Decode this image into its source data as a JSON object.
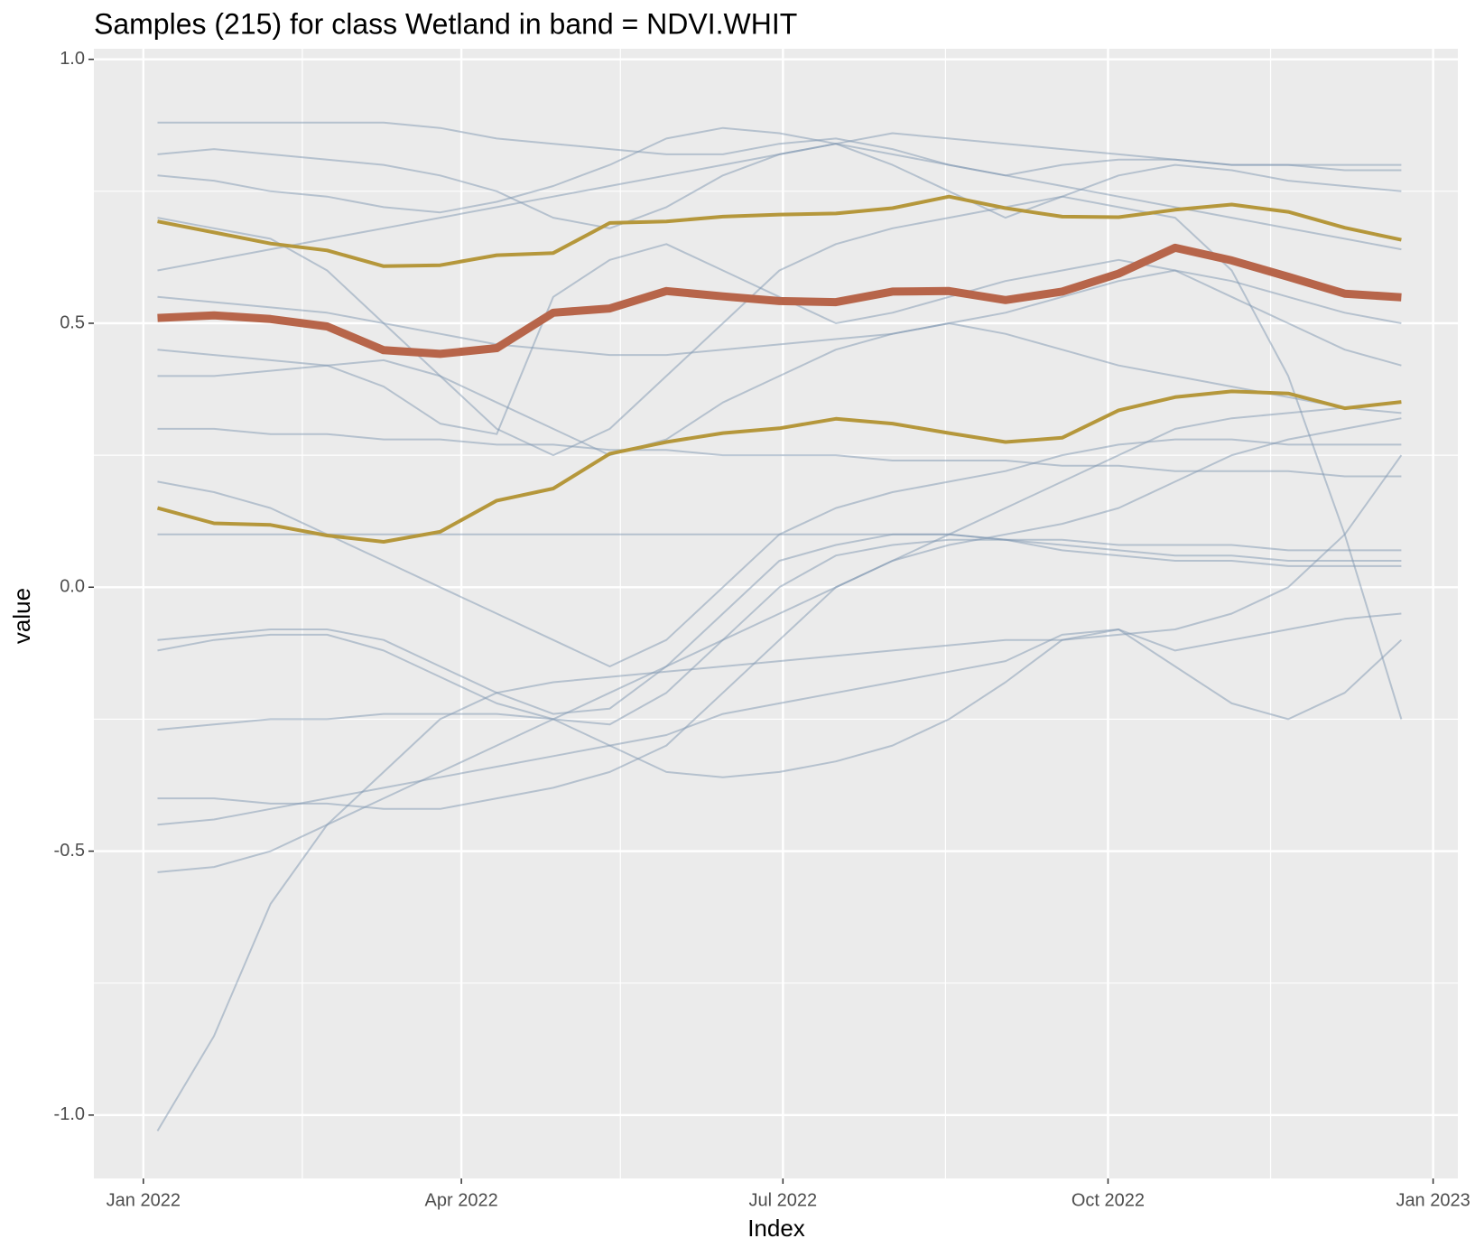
{
  "chart_data": {
    "type": "line",
    "title": "Samples (215) for class Wetland in band = NDVI.WHIT",
    "x_label": "Index",
    "y_label": "value",
    "x": [
      "2022-01-05",
      "2022-01-21",
      "2022-02-06",
      "2022-02-22",
      "2022-03-10",
      "2022-03-26",
      "2022-04-11",
      "2022-04-27",
      "2022-05-13",
      "2022-05-29",
      "2022-06-14",
      "2022-06-30",
      "2022-07-16",
      "2022-08-01",
      "2022-08-17",
      "2022-09-02",
      "2022-09-18",
      "2022-10-04",
      "2022-10-20",
      "2022-11-05",
      "2022-11-21",
      "2022-12-07",
      "2022-12-23"
    ],
    "xlim": [
      "2021-12-18",
      "2023-01-08"
    ],
    "xticks": [
      {
        "value": "2022-01-01",
        "label": "Jan 2022"
      },
      {
        "value": "2022-04-01",
        "label": "Apr 2022"
      },
      {
        "value": "2022-07-01",
        "label": "Jul 2022"
      },
      {
        "value": "2022-10-01",
        "label": "Oct 2022"
      },
      {
        "value": "2023-01-01",
        "label": "Jan 2023"
      }
    ],
    "xminorticks": [
      "2022-02-15",
      "2022-05-16",
      "2022-08-16",
      "2022-11-16"
    ],
    "ylim": [
      -1.12,
      1.02
    ],
    "yticks": [
      {
        "value": 1,
        "label": "1.0"
      },
      0.5,
      {
        "value": 0,
        "label": "0.0"
      },
      -0.5,
      {
        "value": -1,
        "label": "-1.0"
      }
    ],
    "yminorticks": [
      0.75,
      0.25,
      -0.25,
      -0.75
    ],
    "grid": true,
    "series": [
      {
        "color": "#7f98b1",
        "opacity": 0.5,
        "width": 2,
        "values": [
          0.88,
          0.88,
          0.88,
          0.88,
          0.88,
          0.87,
          0.85,
          0.84,
          0.83,
          0.82,
          0.82,
          0.84,
          0.85,
          0.83,
          0.8,
          0.78,
          0.8,
          0.81,
          0.81,
          0.8,
          0.8,
          0.79,
          0.79
        ]
      },
      {
        "color": "#7f98b1",
        "opacity": 0.5,
        "width": 2,
        "values": [
          -1.03,
          -0.85,
          -0.6,
          -0.45,
          -0.35,
          -0.25,
          -0.2,
          -0.18,
          -0.17,
          -0.16,
          -0.15,
          -0.14,
          -0.13,
          -0.12,
          -0.11,
          -0.1,
          -0.1,
          -0.09,
          -0.08,
          -0.05,
          0.0,
          0.1,
          0.25
        ]
      },
      {
        "color": "#7f98b1",
        "opacity": 0.5,
        "width": 2,
        "values": [
          -0.1,
          -0.09,
          -0.08,
          -0.08,
          -0.1,
          -0.15,
          -0.2,
          -0.24,
          -0.23,
          -0.15,
          -0.05,
          0.05,
          0.08,
          0.1,
          0.1,
          0.09,
          0.08,
          0.07,
          0.06,
          0.06,
          0.05,
          0.05,
          0.05
        ]
      },
      {
        "color": "#7f98b1",
        "opacity": 0.5,
        "width": 2,
        "values": [
          -0.12,
          -0.1,
          -0.09,
          -0.09,
          -0.12,
          -0.17,
          -0.22,
          -0.25,
          -0.26,
          -0.2,
          -0.1,
          0.0,
          0.06,
          0.08,
          0.09,
          0.09,
          0.07,
          0.06,
          0.05,
          0.05,
          0.04,
          0.04,
          0.04
        ]
      },
      {
        "color": "#7f98b1",
        "opacity": 0.5,
        "width": 2,
        "values": [
          0.78,
          0.77,
          0.75,
          0.74,
          0.72,
          0.71,
          0.73,
          0.76,
          0.8,
          0.85,
          0.87,
          0.86,
          0.84,
          0.8,
          0.75,
          0.7,
          0.74,
          0.78,
          0.8,
          0.79,
          0.77,
          0.76,
          0.75
        ]
      },
      {
        "color": "#7f98b1",
        "opacity": 0.5,
        "width": 2,
        "values": [
          0.45,
          0.44,
          0.43,
          0.42,
          0.38,
          0.31,
          0.29,
          0.55,
          0.62,
          0.65,
          0.6,
          0.55,
          0.5,
          0.52,
          0.55,
          0.58,
          0.6,
          0.62,
          0.6,
          0.55,
          0.5,
          0.45,
          0.42
        ]
      },
      {
        "color": "#7f98b1",
        "opacity": 0.5,
        "width": 2,
        "values": [
          0.3,
          0.3,
          0.29,
          0.29,
          0.28,
          0.28,
          0.27,
          0.27,
          0.26,
          0.26,
          0.25,
          0.25,
          0.25,
          0.24,
          0.24,
          0.24,
          0.23,
          0.23,
          0.22,
          0.22,
          0.22,
          0.21,
          0.21
        ]
      },
      {
        "color": "#7f98b1",
        "opacity": 0.5,
        "width": 2,
        "values": [
          -0.54,
          -0.53,
          -0.5,
          -0.45,
          -0.4,
          -0.35,
          -0.3,
          -0.25,
          -0.2,
          -0.15,
          -0.1,
          -0.05,
          0.0,
          0.05,
          0.1,
          0.15,
          0.2,
          0.25,
          0.3,
          0.32,
          0.33,
          0.34,
          0.35
        ]
      },
      {
        "color": "#7f98b1",
        "opacity": 0.5,
        "width": 2,
        "values": [
          -0.4,
          -0.4,
          -0.41,
          -0.41,
          -0.42,
          -0.42,
          -0.4,
          -0.38,
          -0.35,
          -0.3,
          -0.2,
          -0.1,
          0.0,
          0.05,
          0.08,
          0.1,
          0.12,
          0.15,
          0.2,
          0.25,
          0.28,
          0.3,
          0.32
        ]
      },
      {
        "color": "#7f98b1",
        "opacity": 0.5,
        "width": 2,
        "values": [
          0.1,
          0.1,
          0.1,
          0.1,
          0.1,
          0.1,
          0.1,
          0.1,
          0.1,
          0.1,
          0.1,
          0.1,
          0.1,
          0.1,
          0.1,
          0.09,
          0.09,
          0.08,
          0.08,
          0.08,
          0.07,
          0.07,
          0.07
        ]
      },
      {
        "color": "#7f98b1",
        "opacity": 0.5,
        "width": 2,
        "values": [
          0.7,
          0.68,
          0.66,
          0.6,
          0.5,
          0.4,
          0.3,
          0.25,
          0.3,
          0.4,
          0.5,
          0.6,
          0.65,
          0.68,
          0.7,
          0.72,
          0.74,
          0.72,
          0.7,
          0.6,
          0.4,
          0.1,
          -0.25
        ]
      },
      {
        "color": "#7f98b1",
        "opacity": 0.5,
        "width": 2,
        "values": [
          -0.27,
          -0.26,
          -0.25,
          -0.25,
          -0.24,
          -0.24,
          -0.24,
          -0.25,
          -0.3,
          -0.35,
          -0.36,
          -0.35,
          -0.33,
          -0.3,
          -0.25,
          -0.18,
          -0.1,
          -0.08,
          -0.15,
          -0.22,
          -0.25,
          -0.2,
          -0.1
        ]
      },
      {
        "color": "#7f98b1",
        "opacity": 0.5,
        "width": 2,
        "values": [
          0.6,
          0.62,
          0.64,
          0.66,
          0.68,
          0.7,
          0.72,
          0.74,
          0.76,
          0.78,
          0.8,
          0.82,
          0.84,
          0.82,
          0.8,
          0.78,
          0.76,
          0.74,
          0.72,
          0.7,
          0.68,
          0.66,
          0.64
        ]
      },
      {
        "color": "#7f98b1",
        "opacity": 0.5,
        "width": 2,
        "values": [
          0.2,
          0.18,
          0.15,
          0.1,
          0.05,
          0.0,
          -0.05,
          -0.1,
          -0.15,
          -0.1,
          0.0,
          0.1,
          0.15,
          0.18,
          0.2,
          0.22,
          0.25,
          0.27,
          0.28,
          0.28,
          0.27,
          0.27,
          0.27
        ]
      },
      {
        "color": "#7f98b1",
        "opacity": 0.5,
        "width": 2,
        "values": [
          0.55,
          0.54,
          0.53,
          0.52,
          0.5,
          0.48,
          0.46,
          0.45,
          0.44,
          0.44,
          0.45,
          0.46,
          0.47,
          0.48,
          0.5,
          0.52,
          0.55,
          0.58,
          0.6,
          0.58,
          0.55,
          0.52,
          0.5
        ]
      },
      {
        "color": "#7f98b1",
        "opacity": 0.5,
        "width": 2,
        "values": [
          0.4,
          0.4,
          0.41,
          0.42,
          0.43,
          0.4,
          0.35,
          0.3,
          0.25,
          0.28,
          0.35,
          0.4,
          0.45,
          0.48,
          0.5,
          0.48,
          0.45,
          0.42,
          0.4,
          0.38,
          0.36,
          0.34,
          0.33
        ]
      },
      {
        "color": "#7f98b1",
        "opacity": 0.5,
        "width": 2,
        "values": [
          -0.45,
          -0.44,
          -0.42,
          -0.4,
          -0.38,
          -0.36,
          -0.34,
          -0.32,
          -0.3,
          -0.28,
          -0.24,
          -0.22,
          -0.2,
          -0.18,
          -0.16,
          -0.14,
          -0.09,
          -0.08,
          -0.12,
          -0.1,
          -0.08,
          -0.06,
          -0.05
        ]
      },
      {
        "color": "#7f98b1",
        "opacity": 0.5,
        "width": 2,
        "values": [
          0.82,
          0.83,
          0.82,
          0.81,
          0.8,
          0.78,
          0.75,
          0.7,
          0.68,
          0.72,
          0.78,
          0.82,
          0.84,
          0.86,
          0.85,
          0.84,
          0.83,
          0.82,
          0.81,
          0.8,
          0.8,
          0.8,
          0.8
        ]
      },
      {
        "color": "#b5973b",
        "opacity": 1,
        "width": 4,
        "values": [
          0.693,
          0.672,
          0.651,
          0.638,
          0.608,
          0.61,
          0.629,
          0.633,
          0.69,
          0.693,
          0.702,
          0.706,
          0.708,
          0.718,
          0.74,
          0.718,
          0.702,
          0.701,
          0.715,
          0.725,
          0.711,
          0.681,
          0.658
        ]
      },
      {
        "color": "#b5973b",
        "opacity": 1,
        "width": 4,
        "values": [
          0.15,
          0.121,
          0.118,
          0.098,
          0.086,
          0.105,
          0.164,
          0.187,
          0.253,
          0.275,
          0.292,
          0.301,
          0.319,
          0.31,
          0.292,
          0.275,
          0.283,
          0.335,
          0.36,
          0.371,
          0.367,
          0.339,
          0.351
        ]
      },
      {
        "color": "#b7654a",
        "opacity": 1,
        "width": 9,
        "values": [
          0.51,
          0.515,
          0.508,
          0.494,
          0.449,
          0.442,
          0.453,
          0.52,
          0.528,
          0.561,
          0.551,
          0.542,
          0.54,
          0.56,
          0.561,
          0.544,
          0.56,
          0.594,
          0.643,
          0.619,
          0.588,
          0.556,
          0.549
        ]
      }
    ]
  }
}
